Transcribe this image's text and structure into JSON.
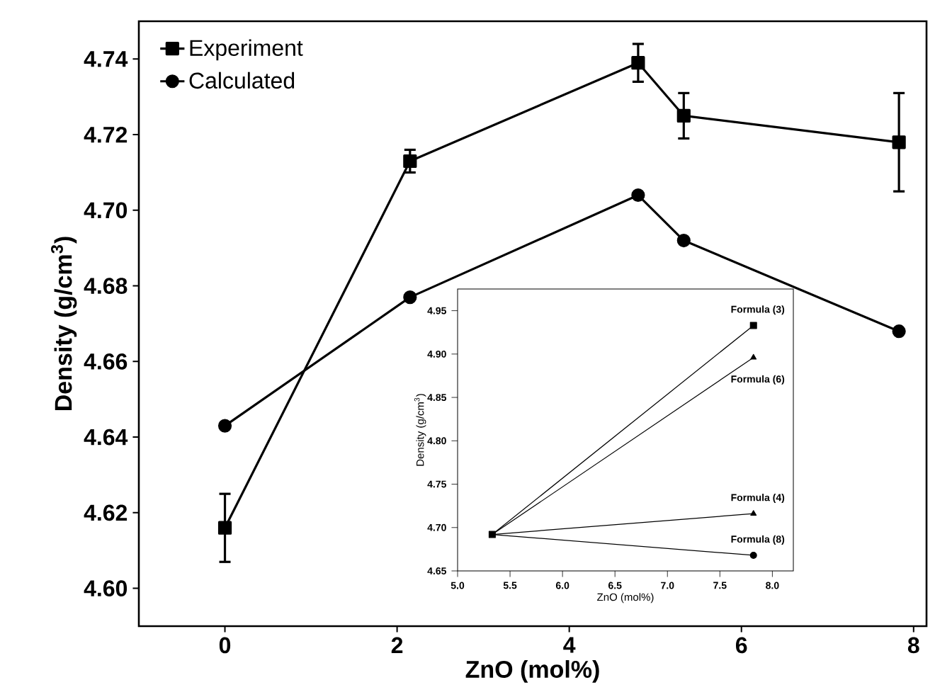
{
  "chart_data": [
    {
      "type": "line",
      "xlabel": "ZnO (mol%)",
      "ylabel": "Density (g/cm$^{3}$)",
      "xlim": [
        -1,
        8.15
      ],
      "ylim": [
        4.59,
        4.75
      ],
      "xticks": [
        0,
        2,
        4,
        6,
        8
      ],
      "yticks": [
        {
          "value": 4.6,
          "label": "4.60"
        },
        4.62,
        4.64,
        4.66,
        4.68,
        {
          "value": 4.7,
          "label": "4.70"
        },
        4.72,
        4.74
      ],
      "x": [
        0,
        2.15,
        4.8,
        5.33,
        7.83
      ],
      "legend": "top left",
      "grid": false,
      "line_style": "solid",
      "series": [
        {
          "name": "Experiment",
          "color": "#000000",
          "marker": "square",
          "values": [
            4.616,
            4.713,
            4.739,
            4.725,
            4.718
          ],
          "errors": [
            0.009,
            0.003,
            0.005,
            0.006,
            0.013
          ]
        },
        {
          "name": "Calculated",
          "color": "#000000",
          "marker": "circle",
          "values": [
            4.643,
            4.677,
            4.704,
            4.692,
            4.668
          ]
        }
      ]
    },
    {
      "type": "line",
      "xlabel": "ZnO (mol%)",
      "ylabel": "Density (g/cm$^{3}$)",
      "xlim": [
        5.0,
        8.2
      ],
      "ylim": [
        4.65,
        4.975
      ],
      "xticks": [
        {
          "value": 5.0,
          "label": "5.0"
        },
        5.5,
        {
          "value": 6.0,
          "label": "6.0"
        },
        6.5,
        {
          "value": 7.0,
          "label": "7.0"
        },
        7.5,
        {
          "value": 8.0,
          "label": "8.0"
        }
      ],
      "yticks": [
        4.65,
        {
          "value": 4.7,
          "label": "4.70"
        },
        4.75,
        {
          "value": 4.8,
          "label": "4.80"
        },
        4.85,
        {
          "value": 4.9,
          "label": "4.90"
        },
        4.95
      ],
      "x": [
        5.33,
        7.82
      ],
      "legend": false,
      "grid": false,
      "line_style": "solid",
      "series": [
        {
          "name": "Formula (3)",
          "color": "#000000",
          "marker": "square",
          "values": [
            4.692,
            4.933
          ]
        },
        {
          "name": "Formula (6)",
          "color": "#000000",
          "marker": "triangle",
          "values": [
            4.692,
            4.896
          ]
        },
        {
          "name": "Formula (4)",
          "color": "#000000",
          "marker": "triangle",
          "values": [
            4.692,
            4.716
          ]
        },
        {
          "name": "Formula (8)",
          "color": "#000000",
          "marker": "circle",
          "values": [
            4.692,
            4.668
          ]
        }
      ]
    }
  ]
}
